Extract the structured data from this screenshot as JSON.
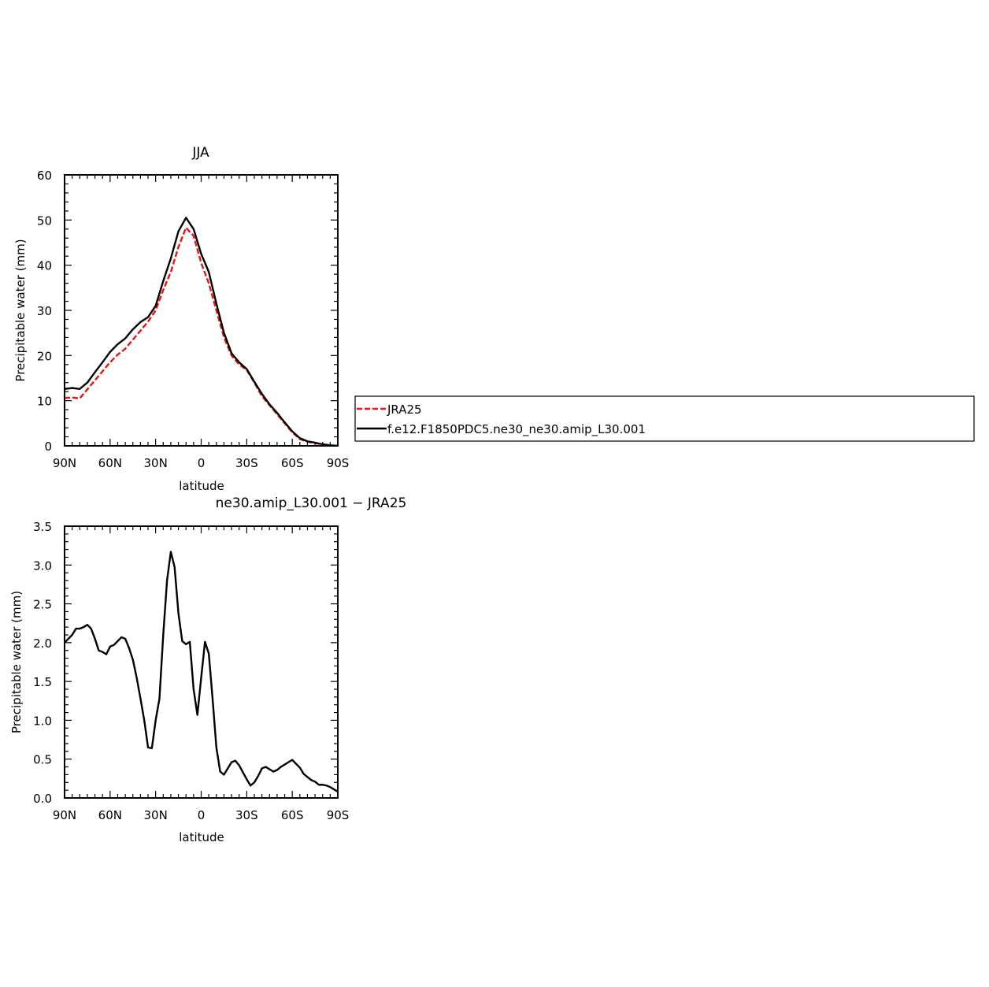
{
  "chart_data": [
    {
      "type": "line",
      "title": "JJA",
      "xlabel": "latitude",
      "ylabel": "Precipitable water (mm)",
      "xlim": [
        90,
        -90
      ],
      "ylim": [
        0,
        60
      ],
      "xticks": [
        90,
        60,
        30,
        0,
        -30,
        -60,
        -90
      ],
      "xtick_labels": [
        "90N",
        "60N",
        "30N",
        "0",
        "30S",
        "60S",
        "90S"
      ],
      "yticks": [
        0,
        10,
        20,
        30,
        40,
        50,
        60
      ],
      "ytick_labels": [
        "0",
        "10",
        "20",
        "30",
        "40",
        "50",
        "60"
      ],
      "grid": false,
      "legend": {
        "placement": "right",
        "entries": [
          "JRA25",
          "f.e12.F1850PDC5.ne30_ne30.amip_L30.001"
        ]
      },
      "series": [
        {
          "name": "JRA25",
          "color": "#e8150f",
          "dash": "dashed",
          "x": [
            90,
            85,
            80,
            75,
            70,
            65,
            60,
            55,
            50,
            45,
            40,
            35,
            30,
            25,
            20,
            15,
            10,
            5,
            0,
            -5,
            -10,
            -15,
            -20,
            -25,
            -30,
            -35,
            -40,
            -45,
            -50,
            -55,
            -60,
            -65,
            -70,
            -75,
            -80,
            -85,
            -90
          ],
          "values": [
            10.6,
            10.7,
            10.5,
            12.5,
            14.5,
            16.5,
            18.5,
            20.2,
            21.5,
            23.5,
            25.5,
            27.5,
            30.0,
            34.5,
            38.5,
            44.0,
            48.3,
            46.5,
            40.5,
            36.0,
            30.0,
            24.0,
            20.0,
            18.0,
            16.8,
            14.0,
            11.0,
            9.0,
            7.0,
            5.0,
            3.0,
            1.5,
            0.9,
            0.6,
            0.3,
            0.1,
            0.0
          ]
        },
        {
          "name": "f.e12.F1850PDC5.ne30_ne30.amip_L30.001",
          "color": "#000000",
          "dash": "solid",
          "x": [
            90,
            85,
            80,
            75,
            70,
            65,
            60,
            55,
            50,
            45,
            40,
            35,
            30,
            25,
            20,
            15,
            10,
            5,
            0,
            -5,
            -10,
            -15,
            -20,
            -25,
            -30,
            -35,
            -40,
            -45,
            -50,
            -55,
            -60,
            -65,
            -70,
            -75,
            -80,
            -85,
            -90
          ],
          "values": [
            12.6,
            12.8,
            12.6,
            14.0,
            16.3,
            18.5,
            20.8,
            22.5,
            23.8,
            25.8,
            27.4,
            28.5,
            31.0,
            36.5,
            41.5,
            47.5,
            50.5,
            48.0,
            42.5,
            38.5,
            31.5,
            25.0,
            20.5,
            18.5,
            17.0,
            14.2,
            11.5,
            9.2,
            7.3,
            5.2,
            3.2,
            1.7,
            1.0,
            0.7,
            0.35,
            0.12,
            0.0
          ]
        }
      ]
    },
    {
      "type": "line",
      "title": "ne30.amip_L30.001 − JRA25",
      "xlabel": "latitude",
      "ylabel": "Precipitable water (mm)",
      "xlim": [
        90,
        -90
      ],
      "ylim": [
        0,
        3.5
      ],
      "xticks": [
        90,
        60,
        30,
        0,
        -30,
        -60,
        -90
      ],
      "xtick_labels": [
        "90N",
        "60N",
        "30N",
        "0",
        "30S",
        "60S",
        "90S"
      ],
      "yticks": [
        0,
        0.5,
        1.0,
        1.5,
        2.0,
        2.5,
        3.0,
        3.5
      ],
      "ytick_labels": [
        "0.0",
        "0.5",
        "1.0",
        "1.5",
        "2.0",
        "2.5",
        "3.0",
        "3.5"
      ],
      "grid": false,
      "series": [
        {
          "color": "#000000",
          "dash": "solid",
          "x": [
            90,
            85,
            82.5,
            80,
            77.5,
            75,
            72.5,
            70,
            67.5,
            65,
            62.5,
            60,
            57.5,
            55,
            52.5,
            50,
            47.5,
            45,
            42.5,
            40,
            37.5,
            35,
            32.5,
            30,
            27.5,
            25,
            22.5,
            20,
            17.5,
            15,
            12.5,
            10,
            7.5,
            5,
            2.5,
            0,
            -2.5,
            -5,
            -7.5,
            -10,
            -12.5,
            -15,
            -17.5,
            -20,
            -22.5,
            -25,
            -27.5,
            -30,
            -32.5,
            -35,
            -37.5,
            -40,
            -42.5,
            -45,
            -47.5,
            -50,
            -52.5,
            -55,
            -57.5,
            -60,
            -62.5,
            -65,
            -67.5,
            -70,
            -72.5,
            -75,
            -77.5,
            -80,
            -82.5,
            -85,
            -87.5,
            -90
          ],
          "values": [
            2.0,
            2.1,
            2.18,
            2.18,
            2.2,
            2.23,
            2.18,
            2.05,
            1.9,
            1.88,
            1.85,
            1.95,
            1.97,
            2.02,
            2.07,
            2.05,
            1.93,
            1.78,
            1.55,
            1.28,
            1.0,
            0.65,
            0.64,
            1.0,
            1.28,
            2.1,
            2.8,
            3.17,
            2.97,
            2.38,
            2.02,
            1.98,
            2.01,
            1.4,
            1.07,
            1.55,
            2.01,
            1.86,
            1.28,
            0.65,
            0.34,
            0.3,
            0.38,
            0.46,
            0.48,
            0.42,
            0.33,
            0.24,
            0.16,
            0.2,
            0.28,
            0.38,
            0.4,
            0.37,
            0.34,
            0.36,
            0.4,
            0.43,
            0.46,
            0.49,
            0.44,
            0.39,
            0.31,
            0.27,
            0.23,
            0.21,
            0.17,
            0.17,
            0.16,
            0.14,
            0.11,
            0.08
          ]
        }
      ]
    }
  ]
}
